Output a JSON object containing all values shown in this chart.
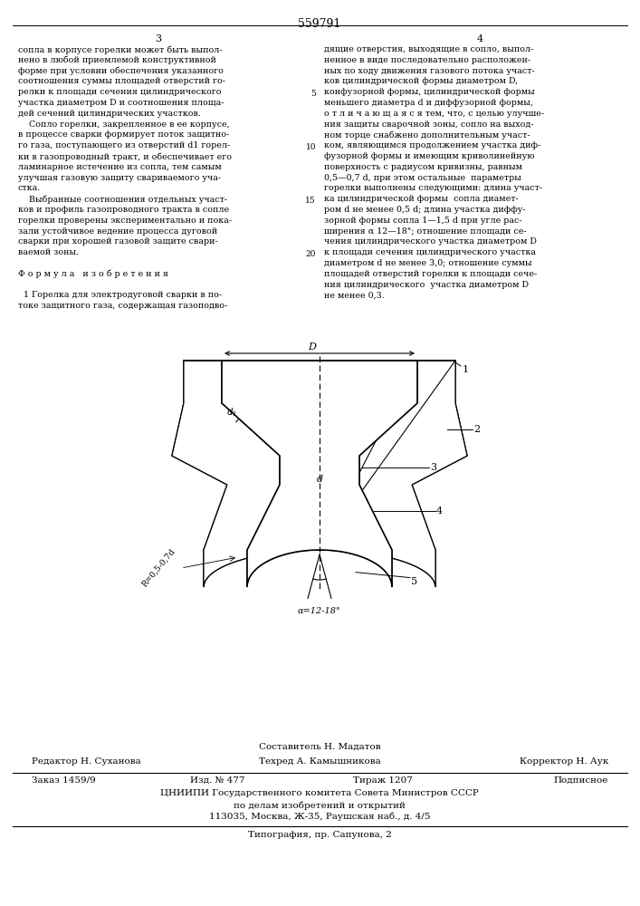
{
  "page_width": 7.07,
  "page_height": 10.0,
  "bg_color": "#ffffff",
  "patent_number": "559791",
  "col1_text": [
    "сопла в корпусе горелки может быть выпол-",
    "нено в любой приемлемой конструктивной",
    "форме при условии обеспечения указанного",
    "соотношения суммы площадей отверстий го-",
    "релки к площади сечения цилиндрического",
    "участка диаметром D и соотношения площа-",
    "дей сечений цилиндрических участков.",
    "    Сопло горелки, закрепленное в ее корпусе,",
    "в процессе сварки формирует поток защитно-",
    "го газа, поступающего из отверстий d1 горел-",
    "ки в газопроводный тракт, и обеспечивает его",
    "ламинарное истечение из сопла, тем самым",
    "улучшая газовую защиту свариваемого уча-",
    "стка.",
    "    Выбранные соотношения отдельных участ-",
    "ков и профиль газопроводного тракта в сопле",
    "горелки проверены экспериментально и пока-",
    "зали устойчивое ведение процесса дуговой",
    "сварки при хорошей газовой защите свари-",
    "ваемой зоны.",
    "",
    "Ф о р м у л а   и з о б р е т е н и я",
    "",
    "  1 Горелка для электродуговой сварки в по-",
    "токе защитного газа, содержащая газоподво-"
  ],
  "col2_text": [
    "дящие отверстия, выходящие в сопло, выпол-",
    "ненное в виде последовательно расположен-",
    "ных по ходу движения газового потока участ-",
    "ков цилиндрической формы диаметром D,",
    "конфузорной формы, цилиндрической формы",
    "меньшего диаметра d и диффузорной формы,",
    "о т л и ч а ю щ а я с я тем, что, с целью улучше-",
    "ния защиты сварочной зоны, сопло на выход-",
    "ном торце снабжено дополнительным участ-",
    "ком, являющимся продолжением участка диф-",
    "фузорной формы и имеющим криволинейную",
    "поверхность с радиусом кривизны, равным",
    "0,5—0,7 d, при этом остальные  параметры",
    "горелки выполнены следующими: длина участ-",
    "ка цилиндрической формы  сопла диамет-",
    "ром d не менее 0,5 d; длина участка диффу-",
    "зорной формы сопла 1—1,5 d при угле рас-",
    "ширения α 12—18°; отношение площади се-",
    "чения цилиндрического участка диаметром D",
    "к площади сечения цилиндрического участка",
    "диаметром d не менее 3,0; отношение суммы",
    "площадей отверстий горелки к площади сече-",
    "ния цилиндрического  участка диаметром D",
    "не менее 0,3."
  ],
  "footer_composer": "Составитель Н. Мадатов",
  "footer_editor": "Редактор Н. Суханова",
  "footer_tech": "Техред А. Камышникова",
  "footer_corrector": "Корректор Н. Аук",
  "footer_order": "Заказ 1459/9",
  "footer_pub": "Изд. № 477",
  "footer_circ": "Тираж 1207",
  "footer_sub": "Подписное",
  "footer_org": "ЦНИИПИ Государственного комитета Совета Министров СССР",
  "footer_org2": "по делам изобретений и открытий",
  "footer_addr": "113035, Москва, Ж-35, Раушская наб., д. 4/5",
  "footer_print": "Типография, пр. Сапунова, 2"
}
